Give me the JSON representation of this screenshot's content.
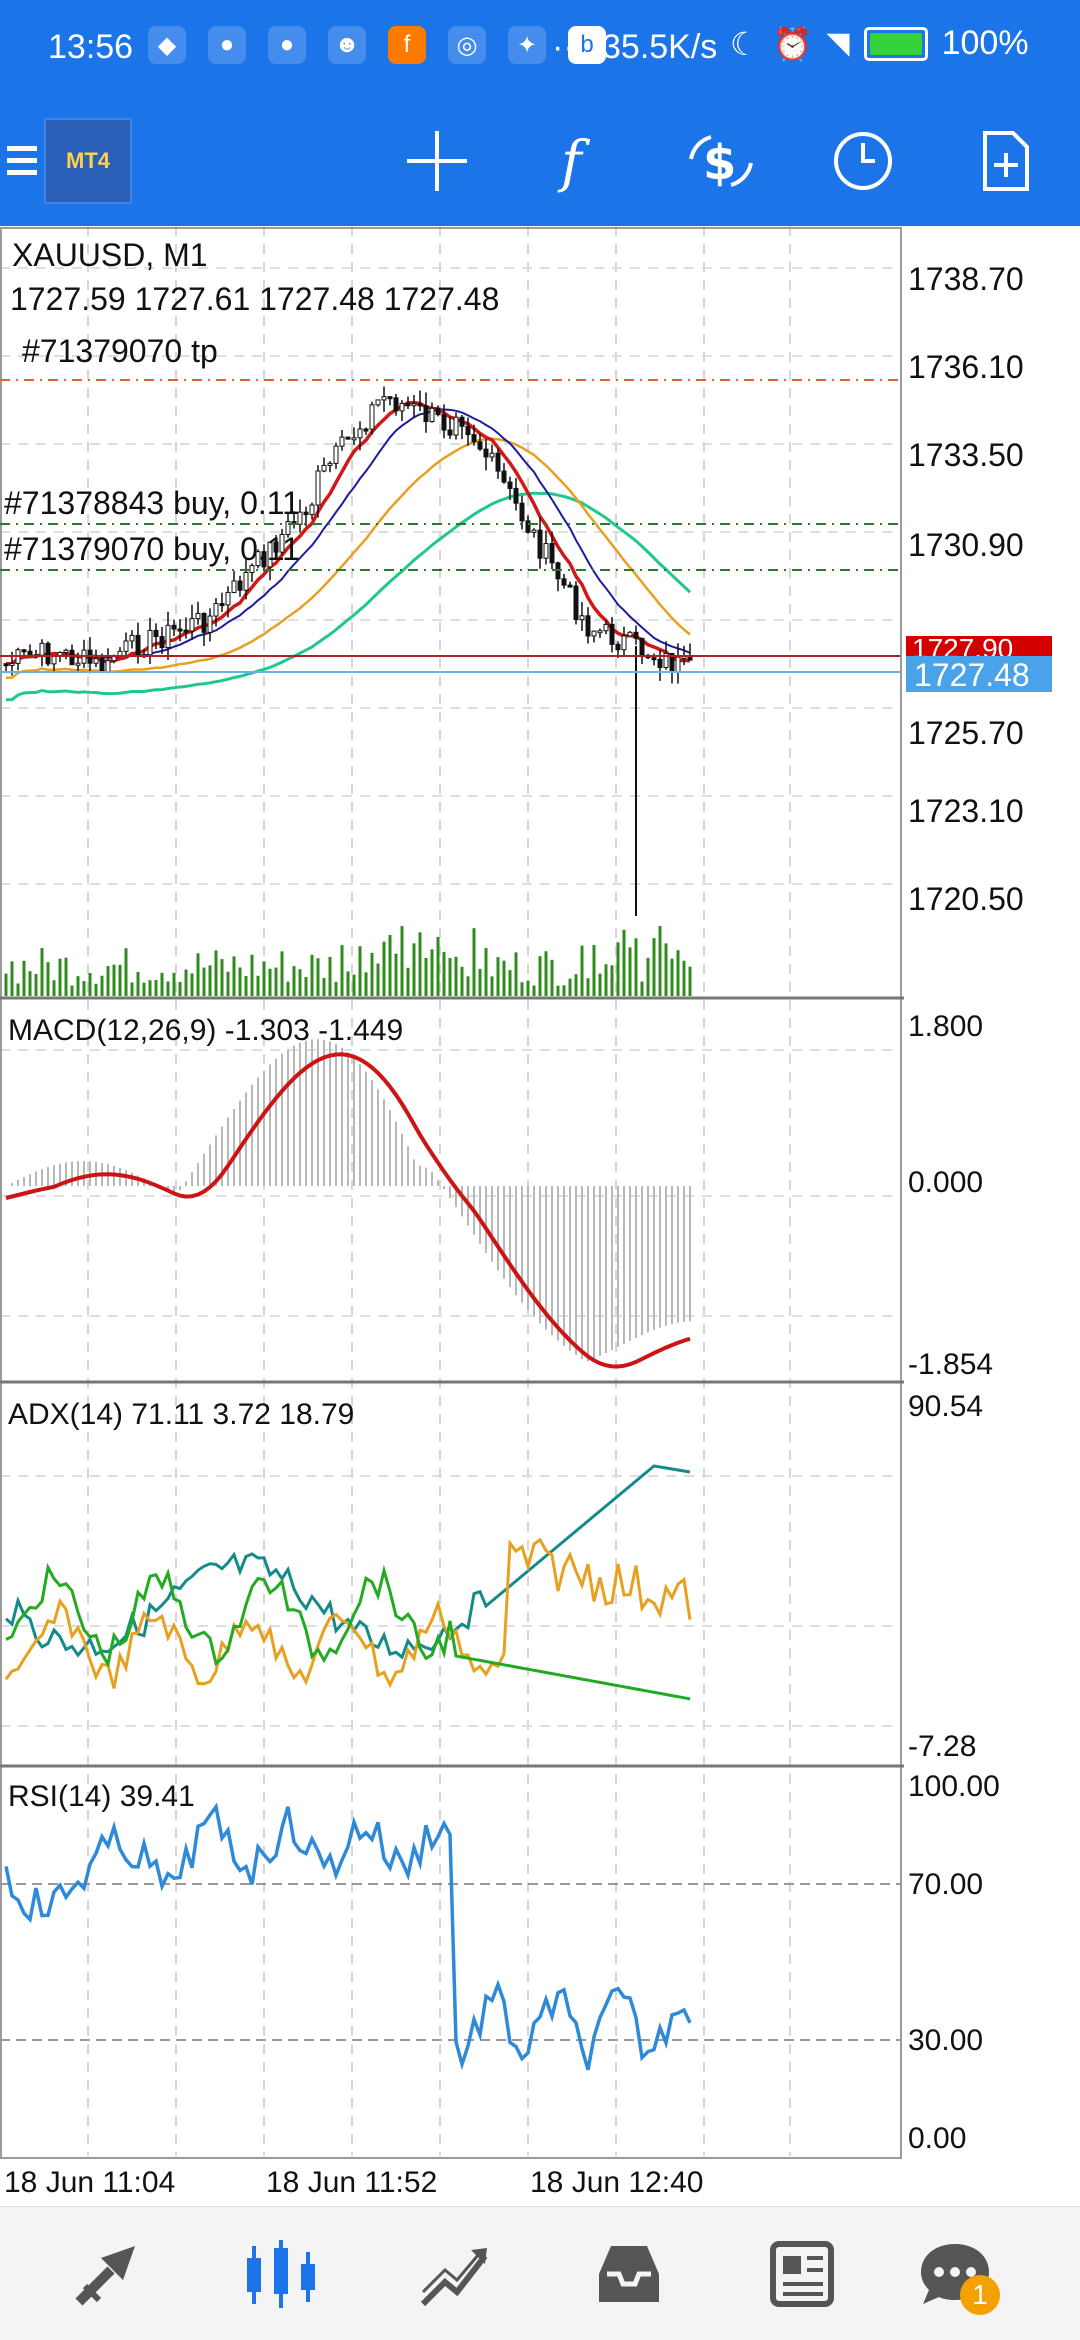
{
  "status_bar": {
    "time": "13:56",
    "dots": "···",
    "speed": "35.5K/s",
    "battery": "100%",
    "icons": [
      "shield-icon",
      "bell-icon",
      "bell-icon",
      "people-icon",
      "app-icon",
      "app-icon",
      "app-icon",
      "app-icon"
    ]
  },
  "app_bar": {
    "logo_text": "MT4",
    "actions": [
      "crosshair-icon",
      "indicators-icon",
      "trade-icon",
      "timeframe-icon",
      "new-order-icon"
    ]
  },
  "chart": {
    "symbol": "XAUUSD, M1",
    "ohlc": "1727.59 1727.61 1727.48 1727.48",
    "orders": {
      "tp": "#71379070 tp",
      "buy1": "#71378843 buy, 0.11",
      "buy2": "#71379070 buy, 0.11"
    },
    "price_ticks": [
      "1738.70",
      "1736.10",
      "1733.50",
      "1730.90",
      "1727.90",
      "1725.70",
      "1723.10",
      "1720.50"
    ],
    "current_price": "1727.48",
    "red_price": "1727.90",
    "colors": {
      "ma_red": "#d01818",
      "ma_blue": "#1c1ca0",
      "ma_orange": "#e8a020",
      "ma_green": "#20c890",
      "volume": "#2e8b1c",
      "current_price_bg": "#4aa3e8",
      "red_price_bg": "#d40000"
    }
  },
  "macd": {
    "label": "MACD(12,26,9) -1.303 -1.449",
    "ticks": [
      "1.800",
      "0.000",
      "-1.854"
    ]
  },
  "adx": {
    "label": "ADX(14) 71.11 3.72 18.79",
    "ticks": [
      "90.54",
      "-7.28"
    ]
  },
  "rsi": {
    "label": "RSI(14) 39.41",
    "ticks": [
      "100.00",
      "70.00",
      "30.00",
      "0.00"
    ]
  },
  "time_axis": [
    "18 Jun 11:04",
    "18 Jun 11:52",
    "18 Jun 12:40"
  ],
  "bottom_nav": {
    "items": [
      "quotes-icon",
      "chart-icon",
      "trade-icon",
      "history-icon",
      "news-icon",
      "chat-icon"
    ],
    "chat_badge": "1"
  }
}
